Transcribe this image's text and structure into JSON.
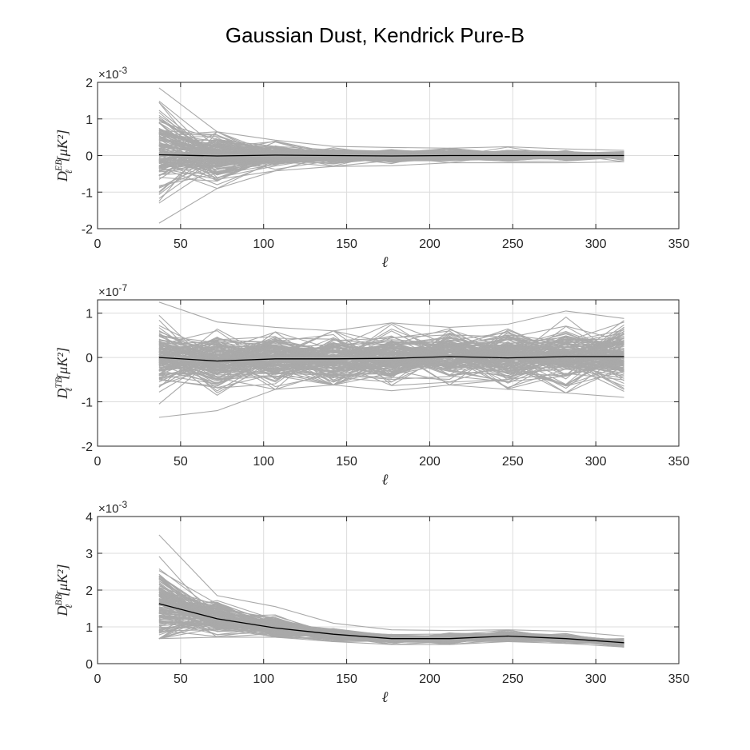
{
  "figure": {
    "title": "Gaussian Dust, Kendrick Pure-B"
  },
  "chart_data": [
    {
      "type": "line",
      "panel": "EB",
      "ylabel_main": "D",
      "ylabel_sub": "ℓ",
      "ylabel_sup": "EB",
      "ylabel_unit": "[μK²]",
      "xlabel": "ℓ",
      "xlim": [
        0,
        350
      ],
      "ylim": [
        -2,
        2
      ],
      "xticks": [
        0,
        50,
        100,
        150,
        200,
        250,
        300,
        350
      ],
      "yticks": [
        -2,
        -1,
        0,
        1,
        2
      ],
      "y_exponent_label": "×10",
      "y_exponent": "-3",
      "grid": true,
      "x": [
        37,
        72,
        107,
        142,
        177,
        212,
        247,
        282,
        317
      ],
      "mean_series": {
        "values": [
          0.02,
          -0.01,
          0.01,
          0.0,
          -0.01,
          0.0,
          0.0,
          0.0,
          0.0
        ]
      },
      "spread_series": {
        "upper": [
          1.85,
          0.65,
          0.42,
          0.25,
          0.22,
          0.2,
          0.24,
          0.18,
          0.14
        ],
        "lower": [
          -1.85,
          -0.9,
          -0.42,
          -0.3,
          -0.28,
          -0.2,
          -0.2,
          -0.2,
          -0.17
        ],
        "typical": [
          0.6,
          0.3,
          0.16,
          0.1,
          0.08,
          0.07,
          0.07,
          0.06,
          0.05
        ]
      },
      "colors": {
        "realizations": "#a9a9a9",
        "mean": "#000000"
      }
    },
    {
      "type": "line",
      "panel": "TB",
      "ylabel_main": "D",
      "ylabel_sub": "ℓ",
      "ylabel_sup": "TB",
      "ylabel_unit": "[μK²]",
      "xlabel": "ℓ",
      "xlim": [
        0,
        350
      ],
      "ylim": [
        -2,
        1.3
      ],
      "xticks": [
        0,
        50,
        100,
        150,
        200,
        250,
        300,
        350
      ],
      "yticks": [
        -2,
        -1,
        0,
        1
      ],
      "y_exponent_label": "×10",
      "y_exponent": "-7",
      "grid": true,
      "x": [
        37,
        72,
        107,
        142,
        177,
        212,
        247,
        282,
        317
      ],
      "mean_series": {
        "values": [
          0.0,
          -0.08,
          -0.03,
          -0.03,
          -0.02,
          0.02,
          -0.01,
          0.02,
          0.02
        ]
      },
      "spread_series": {
        "upper": [
          1.25,
          0.8,
          0.68,
          0.6,
          0.78,
          0.68,
          0.75,
          1.05,
          0.88
        ],
        "lower": [
          -1.35,
          -1.2,
          -0.72,
          -0.62,
          -0.75,
          -0.62,
          -0.72,
          -0.8,
          -0.9
        ],
        "typical": [
          0.35,
          0.3,
          0.28,
          0.27,
          0.28,
          0.27,
          0.28,
          0.3,
          0.3
        ]
      },
      "colors": {
        "realizations": "#a9a9a9",
        "mean": "#000000"
      }
    },
    {
      "type": "line",
      "panel": "BB",
      "ylabel_main": "D",
      "ylabel_sub": "ℓ",
      "ylabel_sup": "BB",
      "ylabel_unit": "[μK²]",
      "xlabel": "ℓ",
      "xlim": [
        0,
        350
      ],
      "ylim": [
        0,
        4
      ],
      "xticks": [
        0,
        50,
        100,
        150,
        200,
        250,
        300,
        350
      ],
      "yticks": [
        0,
        1,
        2,
        3,
        4
      ],
      "y_exponent_label": "×10",
      "y_exponent": "-3",
      "grid": true,
      "x": [
        37,
        72,
        107,
        142,
        177,
        212,
        247,
        282,
        317
      ],
      "mean_series": {
        "values": [
          1.63,
          1.22,
          0.97,
          0.8,
          0.68,
          0.68,
          0.75,
          0.68,
          0.57
        ]
      },
      "spread_series": {
        "upper": [
          3.5,
          1.85,
          1.55,
          1.1,
          0.92,
          0.9,
          0.92,
          0.88,
          0.75
        ],
        "lower": [
          0.68,
          0.72,
          0.72,
          0.6,
          0.52,
          0.52,
          0.6,
          0.55,
          0.45
        ],
        "typical": [
          0.45,
          0.2,
          0.13,
          0.08,
          0.06,
          0.06,
          0.06,
          0.05,
          0.04
        ]
      },
      "colors": {
        "realizations": "#a9a9a9",
        "mean": "#000000"
      }
    }
  ]
}
